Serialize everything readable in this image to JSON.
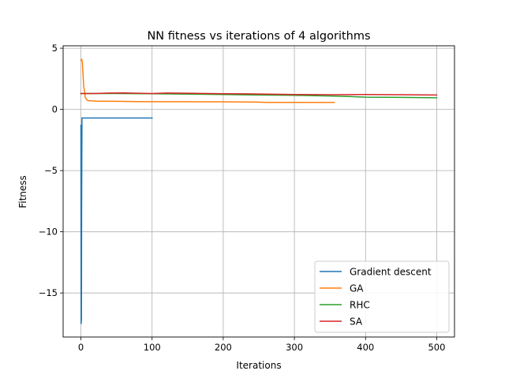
{
  "chart_data": {
    "type": "line",
    "title": "NN fitness vs iterations of 4 algorithms",
    "xlabel": "Iterations",
    "ylabel": "Fitness",
    "xlim": [
      -25,
      525
    ],
    "ylim": [
      -18.6,
      5.2
    ],
    "xticks": [
      0,
      100,
      200,
      300,
      400,
      500
    ],
    "xtick_labels": [
      "0",
      "100",
      "200",
      "300",
      "400",
      "500"
    ],
    "yticks": [
      5,
      0,
      -5,
      -10,
      -15
    ],
    "ytick_labels": [
      "5",
      "0",
      "−5",
      "−10",
      "−15"
    ],
    "grid": true,
    "legend_position": "lower right",
    "series": [
      {
        "name": "Gradient descent",
        "color": "#1f77b4",
        "points": [
          [
            0,
            -1.3
          ],
          [
            0.3,
            -17.5
          ],
          [
            0.7,
            -17.2
          ],
          [
            1,
            -8
          ],
          [
            1.5,
            -0.7
          ],
          [
            2,
            -0.7
          ],
          [
            10,
            -0.7
          ],
          [
            50,
            -0.7
          ],
          [
            100,
            -0.7
          ]
        ]
      },
      {
        "name": "GA",
        "color": "#ff7f0e",
        "points": [
          [
            0,
            4.0
          ],
          [
            1,
            4.1
          ],
          [
            2,
            3.9
          ],
          [
            3,
            2.8
          ],
          [
            4,
            1.8
          ],
          [
            5,
            1.6
          ],
          [
            6,
            1.0
          ],
          [
            8,
            0.8
          ],
          [
            10,
            0.72
          ],
          [
            15,
            0.7
          ],
          [
            20,
            0.68
          ],
          [
            30,
            0.67
          ],
          [
            50,
            0.66
          ],
          [
            80,
            0.64
          ],
          [
            120,
            0.63
          ],
          [
            150,
            0.63
          ],
          [
            180,
            0.62
          ],
          [
            200,
            0.62
          ],
          [
            250,
            0.6
          ],
          [
            260,
            0.57
          ],
          [
            300,
            0.57
          ],
          [
            356,
            0.57
          ]
        ]
      },
      {
        "name": "RHC",
        "color": "#2ca02c",
        "points": [
          [
            0,
            1.3
          ],
          [
            50,
            1.3
          ],
          [
            100,
            1.28
          ],
          [
            150,
            1.25
          ],
          [
            200,
            1.22
          ],
          [
            250,
            1.18
          ],
          [
            300,
            1.15
          ],
          [
            350,
            1.1
          ],
          [
            380,
            1.05
          ],
          [
            400,
            1.0
          ],
          [
            450,
            0.98
          ],
          [
            500,
            0.95
          ]
        ]
      },
      {
        "name": "SA",
        "color": "#d62728",
        "points": [
          [
            0,
            1.3
          ],
          [
            20,
            1.3
          ],
          [
            40,
            1.34
          ],
          [
            60,
            1.35
          ],
          [
            80,
            1.32
          ],
          [
            100,
            1.3
          ],
          [
            120,
            1.34
          ],
          [
            150,
            1.32
          ],
          [
            180,
            1.3
          ],
          [
            200,
            1.28
          ],
          [
            230,
            1.27
          ],
          [
            260,
            1.25
          ],
          [
            300,
            1.22
          ],
          [
            350,
            1.2
          ],
          [
            400,
            1.22
          ],
          [
            450,
            1.2
          ],
          [
            500,
            1.18
          ]
        ]
      }
    ]
  }
}
